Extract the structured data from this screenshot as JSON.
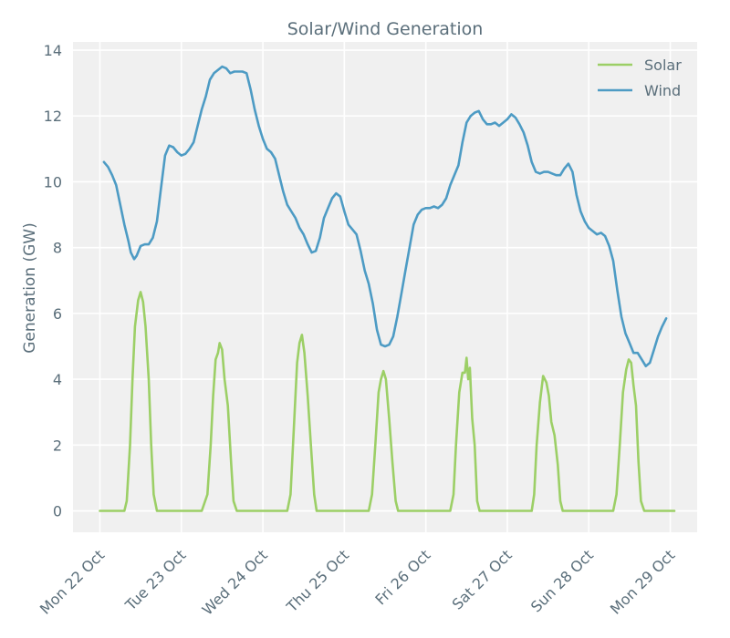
{
  "chart_data": {
    "type": "line",
    "title": "Solar/Wind Generation",
    "xlabel": "",
    "ylabel": "Generation (GW)",
    "x_ticks": [
      {
        "t": 0,
        "label": "Mon 22 Oct"
      },
      {
        "t": 1,
        "label": "Tue 23 Oct"
      },
      {
        "t": 2,
        "label": "Wed 24 Oct"
      },
      {
        "t": 3,
        "label": "Thu 25 Oct"
      },
      {
        "t": 4,
        "label": "Fri 26 Oct"
      },
      {
        "t": 5,
        "label": "Sat 27 Oct"
      },
      {
        "t": 6,
        "label": "Sun 28 Oct"
      },
      {
        "t": 7,
        "label": "Mon 29 Oct"
      }
    ],
    "xlim": [
      -0.33,
      7.33
    ],
    "ylim": [
      -0.65,
      14.25
    ],
    "y_ticks": [
      0,
      2,
      4,
      6,
      8,
      10,
      12,
      14
    ],
    "grid": true,
    "legend_position": "top-right",
    "series": [
      {
        "name": "Solar",
        "color": "#9ccf66",
        "points": [
          [
            0.0,
            0.0
          ],
          [
            0.2,
            0.0
          ],
          [
            0.3,
            0.0
          ],
          [
            0.33,
            0.3
          ],
          [
            0.37,
            2.0
          ],
          [
            0.4,
            4.0
          ],
          [
            0.43,
            5.6
          ],
          [
            0.47,
            6.4
          ],
          [
            0.5,
            6.65
          ],
          [
            0.53,
            6.35
          ],
          [
            0.56,
            5.6
          ],
          [
            0.6,
            4.0
          ],
          [
            0.63,
            2.0
          ],
          [
            0.66,
            0.5
          ],
          [
            0.7,
            0.0
          ],
          [
            1.0,
            0.0
          ],
          [
            1.25,
            0.0
          ],
          [
            1.32,
            0.5
          ],
          [
            1.36,
            2.0
          ],
          [
            1.39,
            3.5
          ],
          [
            1.42,
            4.6
          ],
          [
            1.45,
            4.8
          ],
          [
            1.47,
            5.1
          ],
          [
            1.5,
            4.9
          ],
          [
            1.53,
            4.0
          ],
          [
            1.57,
            3.2
          ],
          [
            1.61,
            1.5
          ],
          [
            1.64,
            0.3
          ],
          [
            1.68,
            0.0
          ],
          [
            2.0,
            0.0
          ],
          [
            2.3,
            0.0
          ],
          [
            2.34,
            0.5
          ],
          [
            2.38,
            2.5
          ],
          [
            2.42,
            4.5
          ],
          [
            2.45,
            5.1
          ],
          [
            2.48,
            5.35
          ],
          [
            2.51,
            4.8
          ],
          [
            2.55,
            3.5
          ],
          [
            2.59,
            2.0
          ],
          [
            2.63,
            0.5
          ],
          [
            2.66,
            0.0
          ],
          [
            3.0,
            0.0
          ],
          [
            3.3,
            0.0
          ],
          [
            3.34,
            0.5
          ],
          [
            3.38,
            2.0
          ],
          [
            3.42,
            3.6
          ],
          [
            3.45,
            4.0
          ],
          [
            3.48,
            4.25
          ],
          [
            3.51,
            4.0
          ],
          [
            3.55,
            2.8
          ],
          [
            3.59,
            1.5
          ],
          [
            3.63,
            0.3
          ],
          [
            3.66,
            0.0
          ],
          [
            4.0,
            0.0
          ],
          [
            4.3,
            0.0
          ],
          [
            4.34,
            0.5
          ],
          [
            4.37,
            2.0
          ],
          [
            4.41,
            3.6
          ],
          [
            4.45,
            4.2
          ],
          [
            4.48,
            4.2
          ],
          [
            4.5,
            4.65
          ],
          [
            4.52,
            4.0
          ],
          [
            4.54,
            4.35
          ],
          [
            4.57,
            2.8
          ],
          [
            4.6,
            2.0
          ],
          [
            4.63,
            0.3
          ],
          [
            4.66,
            0.0
          ],
          [
            5.0,
            0.0
          ],
          [
            5.3,
            0.0
          ],
          [
            5.33,
            0.5
          ],
          [
            5.36,
            2.0
          ],
          [
            5.4,
            3.3
          ],
          [
            5.44,
            4.1
          ],
          [
            5.48,
            3.9
          ],
          [
            5.51,
            3.5
          ],
          [
            5.54,
            2.7
          ],
          [
            5.58,
            2.3
          ],
          [
            5.62,
            1.4
          ],
          [
            5.65,
            0.3
          ],
          [
            5.68,
            0.0
          ],
          [
            6.0,
            0.0
          ],
          [
            6.3,
            0.0
          ],
          [
            6.34,
            0.5
          ],
          [
            6.38,
            2.0
          ],
          [
            6.42,
            3.6
          ],
          [
            6.46,
            4.3
          ],
          [
            6.49,
            4.6
          ],
          [
            6.52,
            4.5
          ],
          [
            6.55,
            3.8
          ],
          [
            6.58,
            3.2
          ],
          [
            6.61,
            1.5
          ],
          [
            6.64,
            0.3
          ],
          [
            6.68,
            0.0
          ],
          [
            7.0,
            0.0
          ],
          [
            7.05,
            0.0
          ]
        ]
      },
      {
        "name": "Wind",
        "color": "#4d9bc4",
        "points": [
          [
            0.05,
            10.6
          ],
          [
            0.1,
            10.45
          ],
          [
            0.15,
            10.2
          ],
          [
            0.2,
            9.9
          ],
          [
            0.25,
            9.3
          ],
          [
            0.3,
            8.7
          ],
          [
            0.35,
            8.2
          ],
          [
            0.38,
            7.85
          ],
          [
            0.42,
            7.65
          ],
          [
            0.45,
            7.75
          ],
          [
            0.5,
            8.05
          ],
          [
            0.55,
            8.1
          ],
          [
            0.6,
            8.1
          ],
          [
            0.65,
            8.3
          ],
          [
            0.7,
            8.8
          ],
          [
            0.75,
            9.8
          ],
          [
            0.8,
            10.8
          ],
          [
            0.85,
            11.1
          ],
          [
            0.9,
            11.05
          ],
          [
            0.95,
            10.9
          ],
          [
            1.0,
            10.8
          ],
          [
            1.05,
            10.85
          ],
          [
            1.1,
            11.0
          ],
          [
            1.15,
            11.2
          ],
          [
            1.2,
            11.7
          ],
          [
            1.25,
            12.2
          ],
          [
            1.3,
            12.6
          ],
          [
            1.35,
            13.1
          ],
          [
            1.4,
            13.3
          ],
          [
            1.45,
            13.4
          ],
          [
            1.5,
            13.5
          ],
          [
            1.55,
            13.45
          ],
          [
            1.6,
            13.3
          ],
          [
            1.65,
            13.35
          ],
          [
            1.7,
            13.35
          ],
          [
            1.75,
            13.35
          ],
          [
            1.8,
            13.3
          ],
          [
            1.85,
            12.8
          ],
          [
            1.9,
            12.2
          ],
          [
            1.95,
            11.7
          ],
          [
            2.0,
            11.3
          ],
          [
            2.05,
            11.0
          ],
          [
            2.1,
            10.9
          ],
          [
            2.15,
            10.7
          ],
          [
            2.2,
            10.2
          ],
          [
            2.25,
            9.7
          ],
          [
            2.3,
            9.3
          ],
          [
            2.35,
            9.1
          ],
          [
            2.4,
            8.9
          ],
          [
            2.45,
            8.6
          ],
          [
            2.5,
            8.4
          ],
          [
            2.55,
            8.1
          ],
          [
            2.6,
            7.85
          ],
          [
            2.65,
            7.9
          ],
          [
            2.7,
            8.3
          ],
          [
            2.75,
            8.9
          ],
          [
            2.8,
            9.2
          ],
          [
            2.85,
            9.5
          ],
          [
            2.9,
            9.65
          ],
          [
            2.95,
            9.55
          ],
          [
            3.0,
            9.1
          ],
          [
            3.05,
            8.7
          ],
          [
            3.1,
            8.55
          ],
          [
            3.15,
            8.4
          ],
          [
            3.2,
            7.9
          ],
          [
            3.25,
            7.3
          ],
          [
            3.3,
            6.9
          ],
          [
            3.35,
            6.3
          ],
          [
            3.4,
            5.5
          ],
          [
            3.45,
            5.05
          ],
          [
            3.5,
            5.0
          ],
          [
            3.55,
            5.05
          ],
          [
            3.6,
            5.3
          ],
          [
            3.65,
            5.9
          ],
          [
            3.7,
            6.6
          ],
          [
            3.75,
            7.3
          ],
          [
            3.8,
            8.0
          ],
          [
            3.85,
            8.7
          ],
          [
            3.9,
            9.0
          ],
          [
            3.95,
            9.15
          ],
          [
            4.0,
            9.2
          ],
          [
            4.05,
            9.2
          ],
          [
            4.1,
            9.25
          ],
          [
            4.15,
            9.2
          ],
          [
            4.2,
            9.3
          ],
          [
            4.25,
            9.5
          ],
          [
            4.3,
            9.9
          ],
          [
            4.35,
            10.2
          ],
          [
            4.4,
            10.5
          ],
          [
            4.45,
            11.2
          ],
          [
            4.5,
            11.8
          ],
          [
            4.55,
            12.0
          ],
          [
            4.6,
            12.1
          ],
          [
            4.65,
            12.15
          ],
          [
            4.7,
            11.9
          ],
          [
            4.75,
            11.75
          ],
          [
            4.8,
            11.75
          ],
          [
            4.85,
            11.8
          ],
          [
            4.9,
            11.7
          ],
          [
            4.95,
            11.8
          ],
          [
            5.0,
            11.9
          ],
          [
            5.05,
            12.05
          ],
          [
            5.1,
            11.95
          ],
          [
            5.15,
            11.75
          ],
          [
            5.2,
            11.5
          ],
          [
            5.25,
            11.1
          ],
          [
            5.3,
            10.6
          ],
          [
            5.35,
            10.3
          ],
          [
            5.4,
            10.25
          ],
          [
            5.45,
            10.3
          ],
          [
            5.5,
            10.3
          ],
          [
            5.55,
            10.25
          ],
          [
            5.6,
            10.2
          ],
          [
            5.65,
            10.2
          ],
          [
            5.7,
            10.4
          ],
          [
            5.75,
            10.55
          ],
          [
            5.8,
            10.3
          ],
          [
            5.85,
            9.6
          ],
          [
            5.9,
            9.1
          ],
          [
            5.95,
            8.8
          ],
          [
            6.0,
            8.6
          ],
          [
            6.05,
            8.5
          ],
          [
            6.1,
            8.4
          ],
          [
            6.15,
            8.45
          ],
          [
            6.2,
            8.35
          ],
          [
            6.25,
            8.05
          ],
          [
            6.3,
            7.6
          ],
          [
            6.35,
            6.7
          ],
          [
            6.4,
            5.9
          ],
          [
            6.45,
            5.4
          ],
          [
            6.5,
            5.1
          ],
          [
            6.55,
            4.8
          ],
          [
            6.6,
            4.8
          ],
          [
            6.65,
            4.6
          ],
          [
            6.7,
            4.4
          ],
          [
            6.75,
            4.5
          ],
          [
            6.8,
            4.9
          ],
          [
            6.85,
            5.3
          ],
          [
            6.9,
            5.6
          ],
          [
            6.95,
            5.85
          ]
        ]
      }
    ]
  }
}
